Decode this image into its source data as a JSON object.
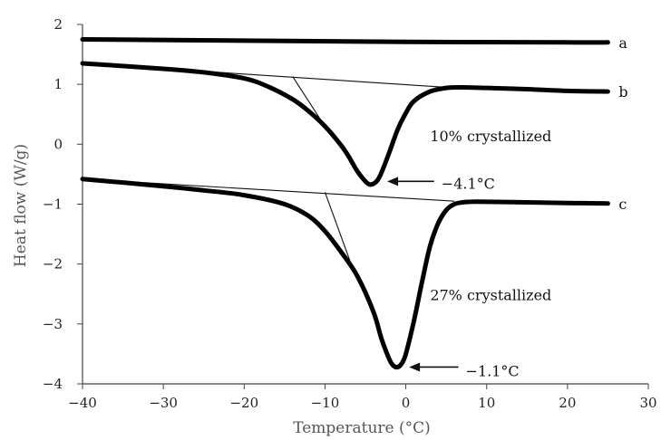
{
  "chart_data": {
    "type": "line",
    "title": "",
    "xlabel": "Temperature (°C)",
    "ylabel": "Heat flow (W/g)",
    "xlim": [
      -40,
      30
    ],
    "ylim": [
      -4,
      2
    ],
    "xticks": [
      -40,
      -30,
      -20,
      -10,
      0,
      10,
      20,
      30
    ],
    "yticks": [
      -4,
      -3,
      -2,
      -1,
      0,
      1,
      2
    ],
    "xtick_labels": [
      "−40",
      "−30",
      "−20",
      "−10",
      "0",
      "10",
      "20",
      "30"
    ],
    "ytick_labels": [
      "−4",
      "−3",
      "−2",
      "−1",
      "0",
      "1",
      "2"
    ],
    "grid": false,
    "series": [
      {
        "name": "a",
        "x": [
          -40,
          -20,
          0,
          20,
          25
        ],
        "y": [
          1.75,
          1.73,
          1.71,
          1.7,
          1.7
        ]
      },
      {
        "name": "b",
        "x": [
          -40,
          -30,
          -25,
          -20,
          -17,
          -14,
          -12,
          -10,
          -8,
          -7,
          -6,
          -5,
          -4.5,
          -4,
          -3.5,
          -3,
          -2,
          -1,
          0,
          1,
          3,
          5,
          7,
          10,
          15,
          20,
          25
        ],
        "y": [
          1.35,
          1.26,
          1.2,
          1.1,
          0.96,
          0.75,
          0.55,
          0.3,
          -0.02,
          -0.22,
          -0.45,
          -0.62,
          -0.67,
          -0.66,
          -0.6,
          -0.47,
          -0.12,
          0.25,
          0.52,
          0.72,
          0.88,
          0.94,
          0.95,
          0.94,
          0.92,
          0.89,
          0.88
        ]
      },
      {
        "name": "c",
        "x": [
          -40,
          -30,
          -25,
          -20,
          -15,
          -12,
          -10,
          -8,
          -6,
          -4,
          -3,
          -2,
          -1.5,
          -1,
          -0.5,
          0,
          1,
          2,
          3,
          4,
          5,
          6,
          7,
          8,
          10,
          15,
          20,
          25
        ],
        "y": [
          -0.58,
          -0.7,
          -0.77,
          -0.85,
          -1.0,
          -1.2,
          -1.45,
          -1.8,
          -2.2,
          -2.8,
          -3.25,
          -3.6,
          -3.7,
          -3.72,
          -3.66,
          -3.5,
          -2.95,
          -2.3,
          -1.7,
          -1.32,
          -1.1,
          -1.0,
          -0.97,
          -0.96,
          -0.96,
          -0.97,
          -0.98,
          -0.99
        ]
      }
    ],
    "construction_lines": [
      {
        "x": [
          -40,
          5
        ],
        "y": [
          1.35,
          0.95
        ]
      },
      {
        "x": [
          -14,
          -10.5
        ],
        "y": [
          1.13,
          0.4
        ]
      },
      {
        "x": [
          -40,
          6
        ],
        "y": [
          -0.58,
          -0.95
        ]
      },
      {
        "x": [
          -10,
          -6.5
        ],
        "y": [
          -0.8,
          -2.1
        ]
      }
    ],
    "annotations": [
      {
        "text": "10% crystallized",
        "x": 3,
        "y": 0.05
      },
      {
        "text": "−4.1°C",
        "x": 4.4,
        "y": -0.74
      },
      {
        "text": "27% crystallized",
        "x": 3,
        "y": -2.6
      },
      {
        "text": "−1.1°C",
        "x": 7.4,
        "y": -3.87
      }
    ],
    "arrows": [
      {
        "from": [
          3.5,
          -0.62
        ],
        "to": [
          -2.3,
          -0.62
        ]
      },
      {
        "from": [
          6.5,
          -3.72
        ],
        "to": [
          0.4,
          -3.72
        ]
      }
    ],
    "colors": {
      "curve": "#000000",
      "axis": "#444444",
      "text": "#222222",
      "title": "#555555"
    }
  }
}
